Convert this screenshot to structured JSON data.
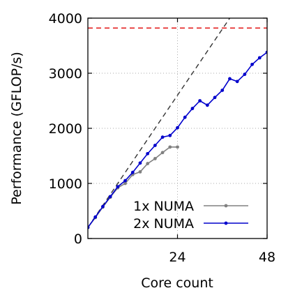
{
  "chart_data": {
    "type": "line",
    "title": "",
    "xlabel": "Core count",
    "ylabel": "Performance (GFLOP/s)",
    "xlim": [
      0,
      48
    ],
    "ylim": [
      0,
      4000
    ],
    "x_ticks": [
      24,
      48
    ],
    "y_ticks": [
      0,
      1000,
      2000,
      3000,
      4000
    ],
    "grid": true,
    "legend_position": "bottom-right",
    "series": [
      {
        "name": "1x NUMA",
        "color": "#808080",
        "marker": "circle",
        "x": [
          0,
          2,
          4,
          6,
          8,
          10,
          12,
          14,
          16,
          18,
          20,
          22,
          24
        ],
        "y": [
          200,
          380,
          570,
          750,
          920,
          1000,
          1160,
          1210,
          1360,
          1450,
          1560,
          1660,
          1660
        ]
      },
      {
        "name": "2x NUMA",
        "color": "#0000cc",
        "marker": "circle",
        "x": [
          0,
          2,
          4,
          6,
          8,
          10,
          12,
          14,
          16,
          18,
          20,
          22,
          24,
          26,
          28,
          30,
          32,
          34,
          36,
          38,
          40,
          42,
          44,
          46,
          48
        ],
        "y": [
          200,
          390,
          580,
          760,
          940,
          1050,
          1200,
          1370,
          1540,
          1690,
          1840,
          1870,
          2010,
          2200,
          2360,
          2500,
          2420,
          2560,
          2690,
          2900,
          2850,
          2980,
          3160,
          3280,
          3380
        ]
      }
    ],
    "reference_lines": [
      {
        "kind": "horizontal",
        "y": 3820,
        "color": "#e00000",
        "style": "dashed"
      },
      {
        "kind": "diagonal",
        "x": [
          0,
          38
        ],
        "y": [
          200,
          4000
        ],
        "color": "#333333",
        "style": "dashed"
      }
    ]
  }
}
